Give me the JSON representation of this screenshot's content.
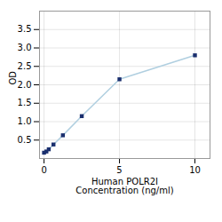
{
  "chart_data": {
    "type": "line",
    "xlabel": "Human POLR2I\nConcentration (ng/ml)",
    "ylabel": "OD",
    "x": [
      0,
      0.156,
      0.313,
      0.625,
      1.25,
      2.5,
      5,
      10
    ],
    "values": [
      0.158,
      0.19,
      0.25,
      0.38,
      0.63,
      1.15,
      2.15,
      2.8
    ],
    "color": "#b0cfe0",
    "marker": "square",
    "marker_color": "#1a2f6e",
    "xlim": [
      -0.3,
      11
    ],
    "ylim": [
      0.0,
      4.0
    ],
    "xticks": [
      0,
      5,
      10
    ],
    "yticks": [
      0.5,
      {
        "value": 1.0,
        "label": "1.0"
      },
      1.5,
      {
        "value": 2.0,
        "label": "2.0"
      },
      2.5,
      {
        "value": 3.0,
        "label": "3.0"
      },
      3.5
    ],
    "grid": true
  }
}
